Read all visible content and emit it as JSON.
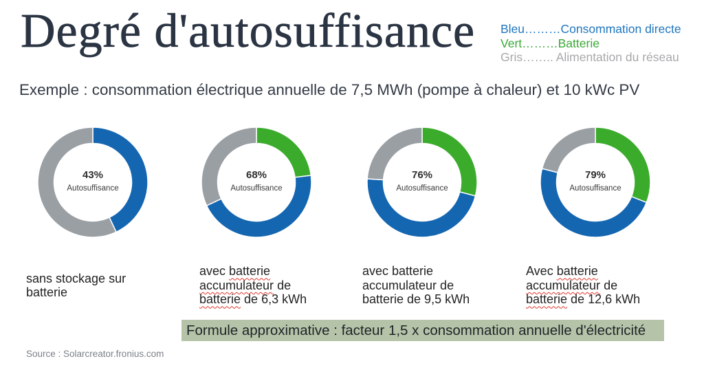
{
  "title": "Degré d'autosuffisance",
  "legend": [
    {
      "text": "Bleu………Consommation directe",
      "color": "#1f76bf"
    },
    {
      "text": "Vert………Batterie",
      "color": "#3aa935"
    },
    {
      "text": "Gris…….. Alimentation du réseau",
      "color": "#a6a8aa"
    }
  ],
  "subtitle": "Exemple : consommation électrique annuelle de 7,5 MWh (pompe à chaleur) et 10 kWc PV",
  "chart_data": [
    {
      "type": "pie",
      "center_value": "43%",
      "center_label": "Autosuffisance",
      "segments": [
        {
          "value": 43,
          "color": "#1466b1"
        },
        {
          "value": 57,
          "color": "#9a9fa4"
        }
      ],
      "caption": [
        "sans stockage sur",
        "batterie"
      ]
    },
    {
      "type": "pie",
      "center_value": "68%",
      "center_label": "Autosuffisance",
      "segments": [
        {
          "value": 23,
          "color": "#3bab2c"
        },
        {
          "value": 45,
          "color": "#1466b1"
        },
        {
          "value": 32,
          "color": "#9a9fa4"
        }
      ],
      "caption": [
        "avec batterie",
        "accumulateur de",
        "batterie de 6,3 kWh"
      ]
    },
    {
      "type": "pie",
      "center_value": "76%",
      "center_label": "Autosuffisance",
      "segments": [
        {
          "value": 29,
          "color": "#3bab2c"
        },
        {
          "value": 47,
          "color": "#1466b1"
        },
        {
          "value": 24,
          "color": "#9a9fa4"
        }
      ],
      "caption": [
        "avec batterie",
        "accumulateur de",
        "batterie de 9,5 kWh"
      ]
    },
    {
      "type": "pie",
      "center_value": "79%",
      "center_label": "Autosuffisance",
      "segments": [
        {
          "value": 31,
          "color": "#3bab2c"
        },
        {
          "value": 48,
          "color": "#1466b1"
        },
        {
          "value": 21,
          "color": "#9a9fa4"
        }
      ],
      "caption": [
        "Avec batterie",
        "accumulateur de",
        "batterie de 12,6 kWh"
      ]
    }
  ],
  "formula": "Formule approximative : facteur 1,5 x consommation annuelle d'électricité",
  "source": "Source : Solarcreator.fronius.com"
}
